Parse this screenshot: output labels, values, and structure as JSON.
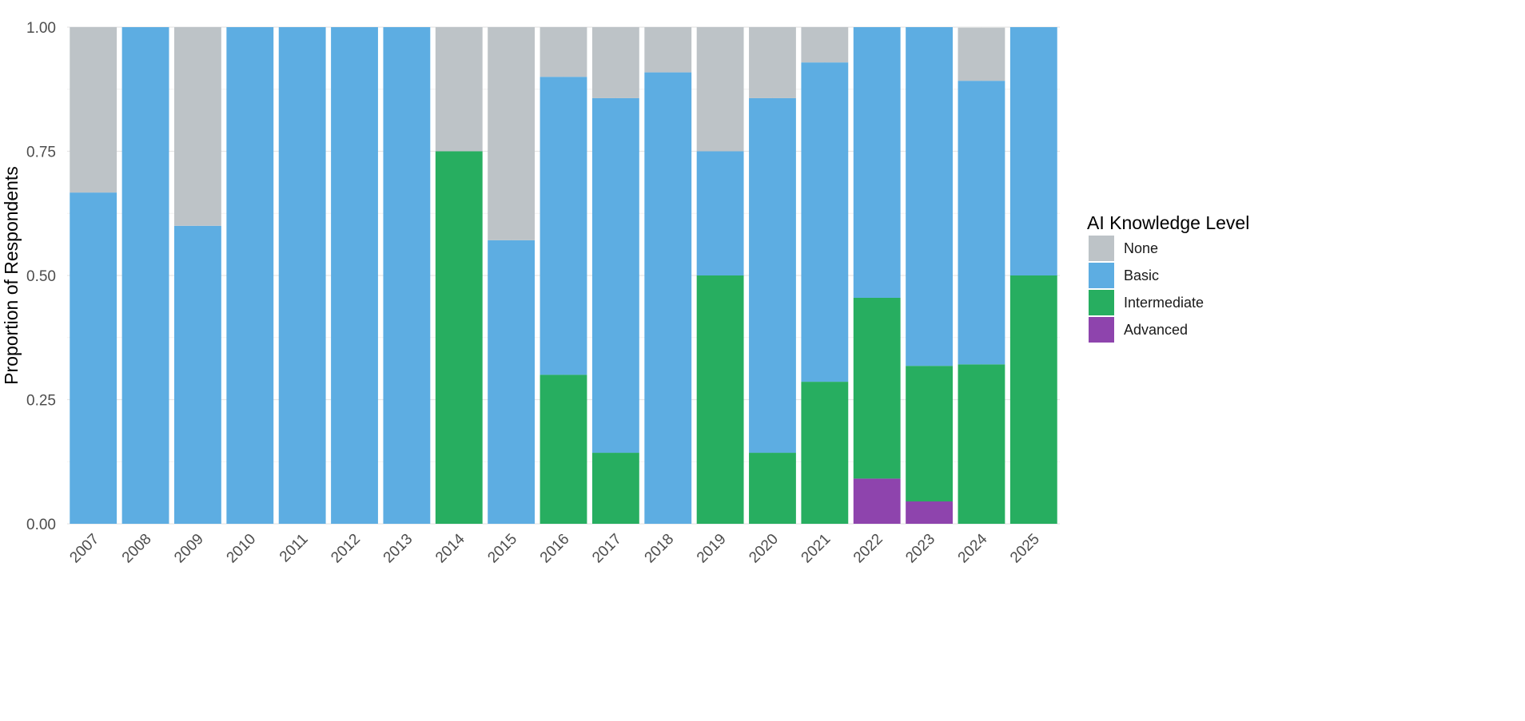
{
  "chart_data": {
    "type": "bar",
    "stacked": true,
    "title": "",
    "xlabel": "",
    "ylabel": "Proportion of Respondents",
    "ylim": [
      0,
      1
    ],
    "y_ticks": [
      "0.00",
      "0.25",
      "0.50",
      "0.75",
      "1.00"
    ],
    "y_tick_values": [
      0,
      0.25,
      0.5,
      0.75,
      1.0
    ],
    "grid": true,
    "categories": [
      "2007",
      "2008",
      "2009",
      "2010",
      "2011",
      "2012",
      "2013",
      "2014",
      "2015",
      "2016",
      "2017",
      "2018",
      "2019",
      "2020",
      "2021",
      "2022",
      "2023",
      "2024",
      "2025"
    ],
    "legend": {
      "title": "AI Knowledge Level",
      "placement": "right"
    },
    "series": [
      {
        "name": "Advanced",
        "color": "#8e44ad",
        "values": [
          0,
          0,
          0,
          0,
          0,
          0,
          0,
          0,
          0,
          0,
          0,
          0,
          0,
          0,
          0,
          0.091,
          0.045,
          0,
          0
        ]
      },
      {
        "name": "Intermediate",
        "color": "#27ae60",
        "values": [
          0,
          0,
          0,
          0,
          0,
          0,
          0,
          0.75,
          0,
          0.3,
          0.143,
          0,
          0.5,
          0.143,
          0.286,
          0.364,
          0.273,
          0.321,
          0.5
        ]
      },
      {
        "name": "Basic",
        "color": "#5dade2",
        "values": [
          0.667,
          1.0,
          0.6,
          1.0,
          1.0,
          1.0,
          1.0,
          0,
          0.571,
          0.6,
          0.714,
          0.909,
          0.25,
          0.714,
          0.643,
          0.545,
          0.682,
          0.571,
          0.5
        ]
      },
      {
        "name": "None",
        "color": "#bdc3c7",
        "values": [
          0.333,
          0,
          0.4,
          0,
          0,
          0,
          0,
          0.25,
          0.429,
          0.1,
          0.143,
          0.091,
          0.25,
          0.143,
          0.071,
          0,
          0,
          0.107,
          0
        ]
      }
    ],
    "legend_order": [
      "None",
      "Basic",
      "Intermediate",
      "Advanced"
    ]
  }
}
